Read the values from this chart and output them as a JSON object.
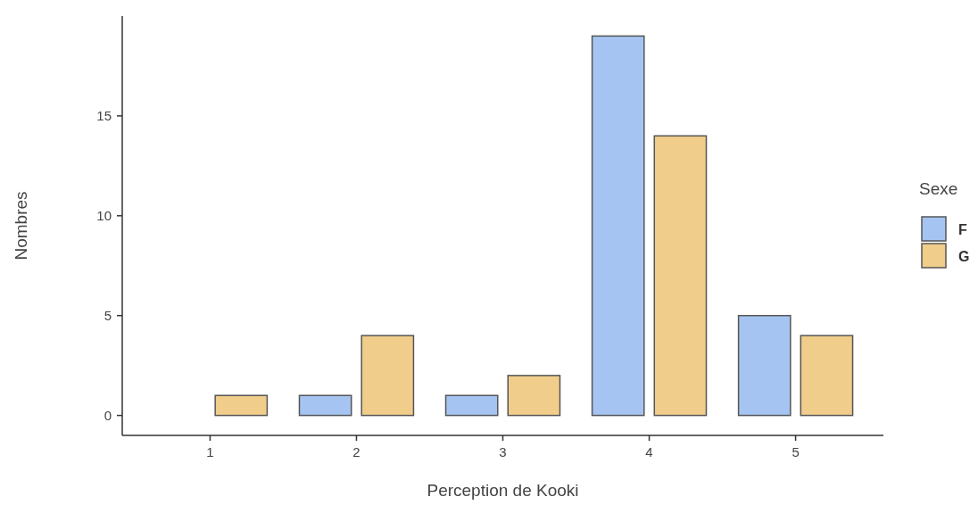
{
  "chart_data": {
    "type": "bar",
    "xlabel": "Perception de Kooki",
    "ylabel": "Nombres",
    "legend_title": "Sexe",
    "legend": "right",
    "categories": [
      "1",
      "2",
      "3",
      "4",
      "5"
    ],
    "series": [
      {
        "name": "F",
        "color": "#a5c4f1",
        "values": [
          0,
          1,
          1,
          19,
          5
        ]
      },
      {
        "name": "G",
        "color": "#f0cd8b",
        "values": [
          1,
          4,
          2,
          14,
          4
        ]
      }
    ],
    "ylim": [
      -1,
      20
    ],
    "yticks": [
      0,
      5,
      10,
      15
    ],
    "grid": false
  }
}
